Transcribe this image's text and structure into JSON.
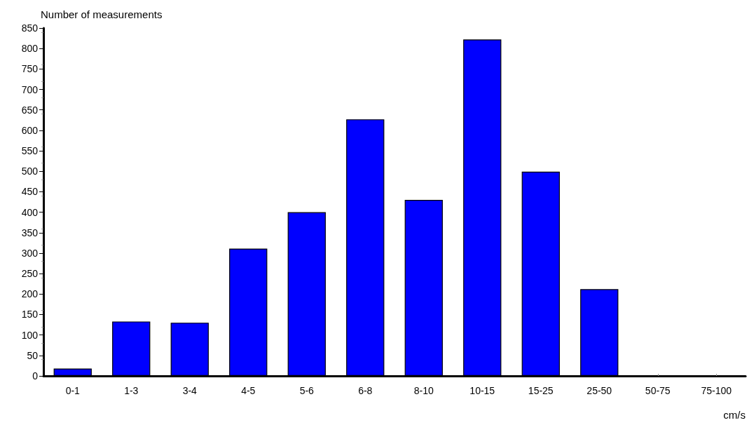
{
  "chart_data": {
    "type": "bar",
    "xlabel": "cm/s",
    "ylabel": "Number of measurements",
    "categories": [
      "0-1",
      "1-3",
      "3-4",
      "4-5",
      "5-6",
      "6-8",
      "8-10",
      "10-15",
      "15-25",
      "25-50",
      "50-75",
      "75-100"
    ],
    "values": [
      18,
      133,
      130,
      311,
      400,
      627,
      430,
      822,
      499,
      212,
      0,
      0
    ],
    "color": "#0000ff",
    "ylim": [
      0,
      850
    ],
    "yticks": [
      0,
      50,
      100,
      150,
      200,
      250,
      300,
      350,
      400,
      450,
      500,
      550,
      600,
      650,
      700,
      750,
      800,
      850
    ],
    "grid": false
  }
}
